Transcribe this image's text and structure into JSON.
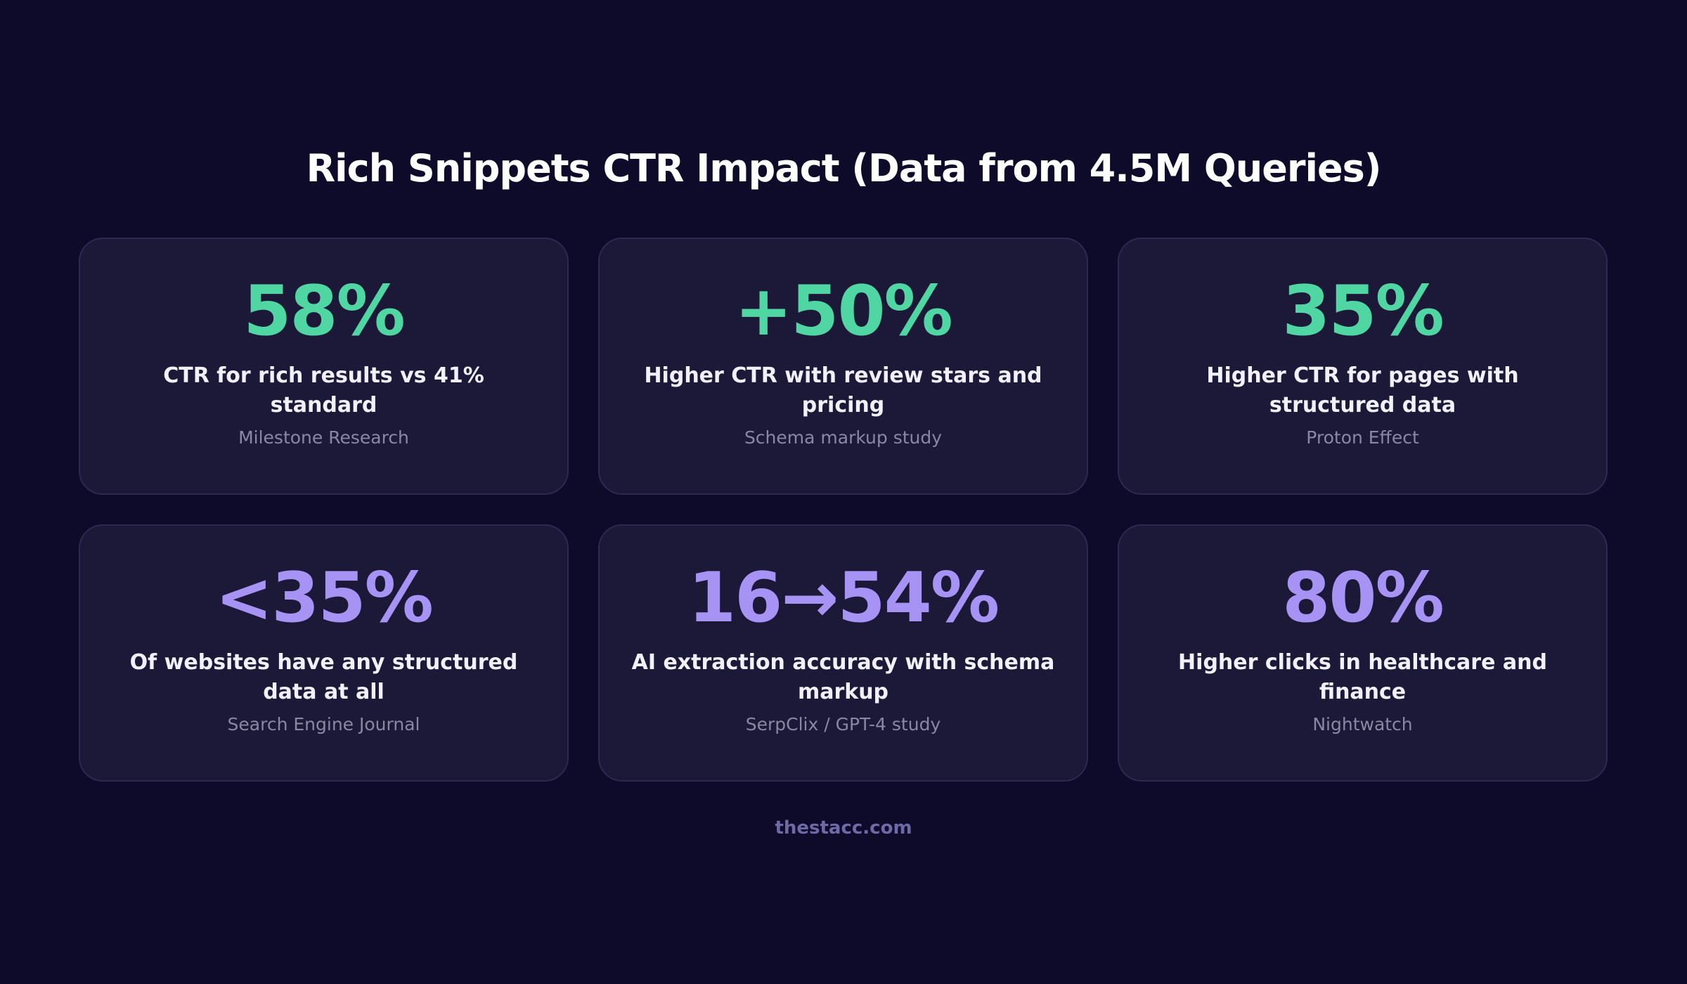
{
  "title": "Rich Snippets CTR Impact (Data from 4.5M Queries)",
  "cards": [
    {
      "stat": "58%",
      "description": "CTR for rich results vs 41% standard",
      "source": "Milestone Research",
      "color": "#4fd6a3"
    },
    {
      "stat": "+50%",
      "description": "Higher CTR with review stars and pricing",
      "source": "Schema markup study",
      "color": "#4fd6a3"
    },
    {
      "stat": "35%",
      "description": "Higher CTR for pages with structured data",
      "source": "Proton Effect",
      "color": "#4fd6a3"
    },
    {
      "stat": "<35%",
      "description": "Of websites have any structured data at all",
      "source": "Search Engine Journal",
      "color": "#a693f4"
    },
    {
      "stat": "16→54%",
      "description": "AI extraction accuracy with schema markup",
      "source": "SerpClix / GPT-4 study",
      "color": "#a693f4"
    },
    {
      "stat": "80%",
      "description": "Higher clicks in healthcare and finance",
      "source": "Nightwatch",
      "color": "#a693f4"
    }
  ],
  "footer": "thestacc.com"
}
